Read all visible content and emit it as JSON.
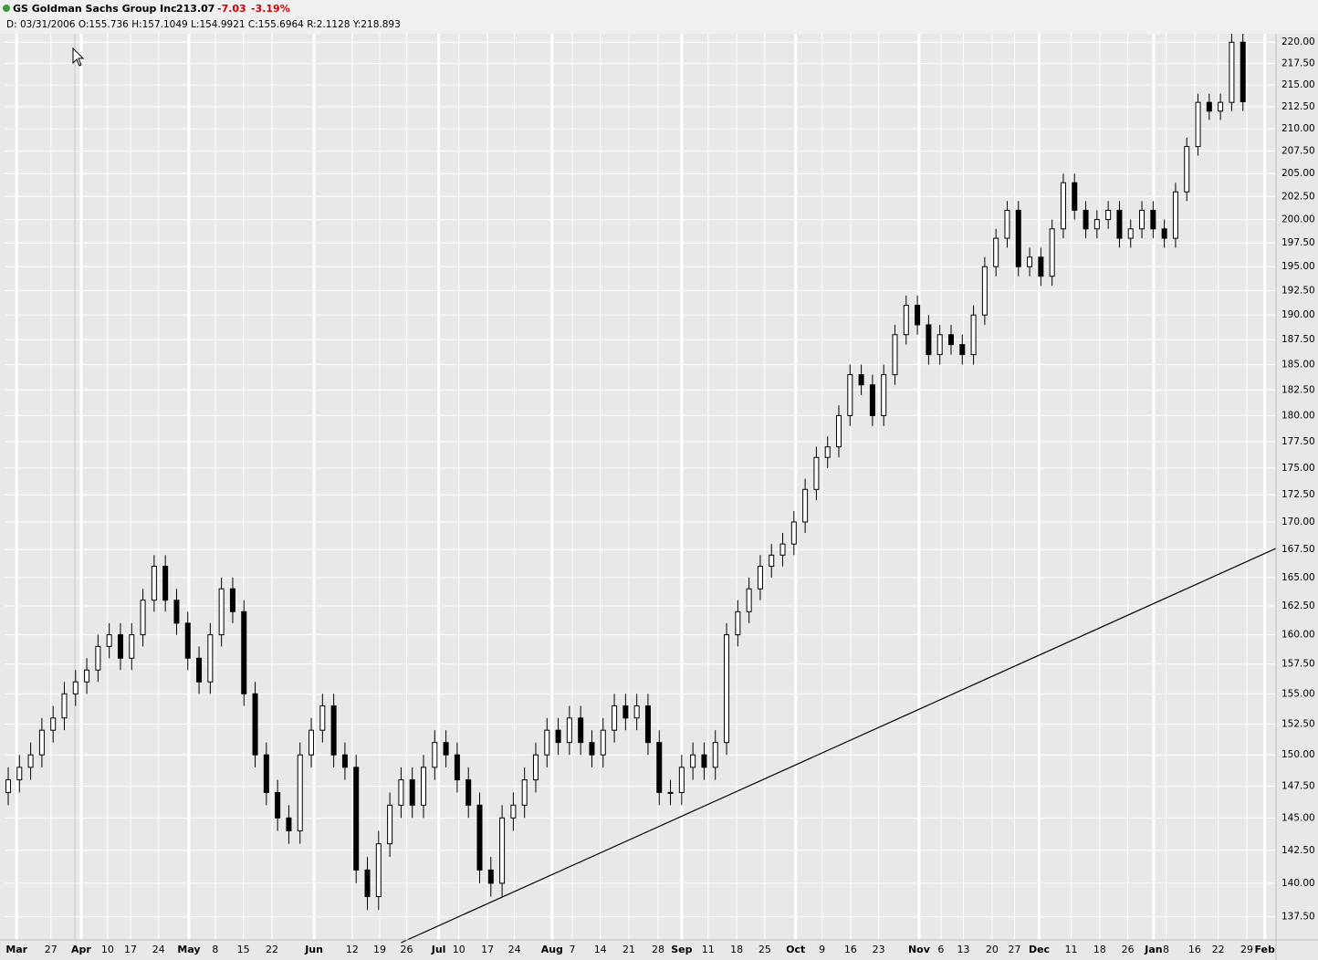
{
  "header": {
    "symbol": "GS Goldman Sachs Group Inc",
    "price": "213.07",
    "change": "-7.03",
    "change_pct": "-3.19%",
    "info": "D: 03/31/2006 O:155.736 H:157.1049 L:154.9921 C:155.6964 R:2.1128 Y:218.893"
  },
  "chart_data": {
    "type": "candlestick",
    "log_scale": true,
    "grid": true,
    "up_color": "#ffffff",
    "down_color": "#000000",
    "x": [
      0,
      2,
      4,
      6,
      8,
      10,
      12,
      14,
      16,
      18,
      20,
      22,
      24,
      26,
      28,
      30,
      32,
      34,
      36,
      38,
      40,
      42,
      44,
      46,
      48,
      50,
      52,
      54,
      56,
      58,
      60,
      62,
      64,
      66,
      68,
      70,
      72,
      74,
      76,
      78,
      80,
      82,
      84,
      86,
      88,
      90,
      92,
      94,
      96,
      98,
      100,
      102,
      104,
      106,
      108,
      110,
      112,
      114,
      116,
      118,
      120,
      122,
      124,
      126,
      128,
      130,
      132,
      134,
      136,
      138,
      140,
      142,
      144,
      146,
      148,
      150,
      152,
      154,
      156,
      158,
      160,
      162,
      164,
      166,
      168,
      170,
      172,
      174,
      176,
      178,
      180,
      182,
      184,
      186,
      188,
      190,
      192,
      194,
      196,
      198,
      200,
      202,
      204,
      206,
      208,
      210,
      212,
      214,
      216,
      218,
      220
    ],
    "open": [
      147,
      148,
      149,
      150,
      152,
      153,
      155,
      156,
      157,
      159,
      160,
      158,
      160,
      163,
      166,
      163,
      161,
      158,
      156,
      160,
      164,
      162,
      155,
      150,
      147,
      145,
      144,
      150,
      152,
      154,
      150,
      149,
      141,
      139,
      143,
      146,
      148,
      146,
      149,
      151,
      150,
      148,
      146,
      141,
      140,
      145,
      146,
      148,
      150,
      152,
      151,
      153,
      151,
      150,
      152,
      154,
      153,
      154,
      151,
      147,
      147,
      149,
      150,
      149,
      151,
      160,
      162,
      164,
      166,
      167,
      168,
      170,
      173,
      176,
      177,
      180,
      184,
      183,
      180,
      184,
      188,
      191,
      189,
      186,
      188,
      187,
      186,
      190,
      195,
      198,
      201,
      195,
      196,
      194,
      199,
      204,
      201,
      199,
      200,
      201,
      198,
      199,
      201,
      199,
      198,
      203,
      208,
      213,
      212,
      213,
      220
    ],
    "high": [
      149,
      150,
      151,
      153,
      154,
      156,
      157,
      158,
      160,
      161,
      161,
      161,
      164,
      167,
      167,
      164,
      162,
      159,
      161,
      165,
      165,
      163,
      156,
      151,
      148,
      146,
      151,
      153,
      155,
      155,
      151,
      150,
      142,
      144,
      147,
      149,
      149,
      150,
      152,
      152,
      151,
      149,
      147,
      142,
      146,
      147,
      149,
      151,
      153,
      153,
      154,
      154,
      152,
      153,
      155,
      155,
      155,
      155,
      152,
      148,
      150,
      151,
      151,
      152,
      161,
      163,
      165,
      167,
      168,
      169,
      171,
      174,
      177,
      178,
      181,
      185,
      185,
      184,
      185,
      189,
      192,
      192,
      190,
      189,
      189,
      188,
      191,
      196,
      199,
      202,
      202,
      197,
      197,
      200,
      205,
      205,
      202,
      201,
      202,
      202,
      200,
      202,
      202,
      200,
      204,
      209,
      214,
      214,
      214,
      221,
      221
    ],
    "low": [
      146,
      147,
      148,
      149,
      151,
      152,
      154,
      155,
      156,
      158,
      157,
      157,
      159,
      162,
      162,
      160,
      157,
      155,
      155,
      159,
      161,
      154,
      149,
      146,
      144,
      143,
      143,
      149,
      151,
      149,
      148,
      140,
      138,
      138,
      142,
      145,
      145,
      145,
      148,
      149,
      147,
      145,
      140,
      139,
      139,
      144,
      145,
      147,
      149,
      150,
      150,
      150,
      149,
      149,
      151,
      152,
      152,
      150,
      146,
      146,
      146,
      148,
      148,
      148,
      150,
      159,
      161,
      163,
      165,
      166,
      167,
      169,
      172,
      175,
      176,
      179,
      182,
      179,
      179,
      183,
      187,
      188,
      185,
      185,
      186,
      185,
      185,
      189,
      194,
      197,
      194,
      194,
      193,
      193,
      198,
      200,
      198,
      198,
      199,
      197,
      197,
      198,
      198,
      197,
      197,
      202,
      207,
      211,
      211,
      212,
      212
    ],
    "close": [
      148,
      149,
      150,
      152,
      153,
      155,
      156,
      157,
      159,
      160,
      158,
      160,
      163,
      166,
      163,
      161,
      158,
      156,
      160,
      164,
      162,
      155,
      150,
      147,
      145,
      144,
      150,
      152,
      154,
      150,
      149,
      141,
      139,
      143,
      146,
      148,
      146,
      149,
      151,
      150,
      148,
      146,
      141,
      140,
      145,
      146,
      148,
      150,
      152,
      151,
      153,
      151,
      150,
      152,
      154,
      153,
      154,
      151,
      147,
      147,
      149,
      150,
      149,
      151,
      160,
      162,
      164,
      166,
      167,
      168,
      170,
      173,
      176,
      177,
      180,
      184,
      183,
      180,
      184,
      188,
      191,
      189,
      186,
      188,
      187,
      186,
      190,
      195,
      198,
      201,
      195,
      196,
      194,
      199,
      204,
      201,
      199,
      200,
      201,
      198,
      199,
      201,
      199,
      198,
      203,
      208,
      213,
      212,
      213,
      220,
      213.07
    ],
    "trendline": {
      "x": [
        70,
        225.9
      ],
      "y": [
        135.6,
        167.6
      ],
      "color": "#000000"
    },
    "xlim": [
      -0.65,
      225.9
    ],
    "ylim": [
      135.8,
      221
    ],
    "xticks": [
      {
        "value": 1.5,
        "label": "Mar"
      },
      {
        "value": 7.6,
        "label": "27"
      },
      {
        "value": 13,
        "label": "Apr"
      },
      {
        "value": 17.7,
        "label": "10"
      },
      {
        "value": 21.8,
        "label": "17"
      },
      {
        "value": 26.8,
        "label": "24"
      },
      {
        "value": 32.2,
        "label": "May"
      },
      {
        "value": 36.9,
        "label": "8"
      },
      {
        "value": 41.9,
        "label": "15"
      },
      {
        "value": 47,
        "label": "22"
      },
      {
        "value": 54.5,
        "label": "Jun"
      },
      {
        "value": 61.3,
        "label": "12"
      },
      {
        "value": 66.2,
        "label": "19"
      },
      {
        "value": 71,
        "label": "26"
      },
      {
        "value": 76.7,
        "label": "Jul"
      },
      {
        "value": 80.3,
        "label": "10"
      },
      {
        "value": 85.4,
        "label": "17"
      },
      {
        "value": 90.2,
        "label": "24"
      },
      {
        "value": 96.9,
        "label": "Aug"
      },
      {
        "value": 100.5,
        "label": "7"
      },
      {
        "value": 105.5,
        "label": "14"
      },
      {
        "value": 110.6,
        "label": "21"
      },
      {
        "value": 115.8,
        "label": "28"
      },
      {
        "value": 120,
        "label": "Sep"
      },
      {
        "value": 124.7,
        "label": "11"
      },
      {
        "value": 129.8,
        "label": "18"
      },
      {
        "value": 134.8,
        "label": "25"
      },
      {
        "value": 140.3,
        "label": "Oct"
      },
      {
        "value": 145,
        "label": "9"
      },
      {
        "value": 150.1,
        "label": "16"
      },
      {
        "value": 155.1,
        "label": "23"
      },
      {
        "value": 162.3,
        "label": "Nov"
      },
      {
        "value": 166.2,
        "label": "6"
      },
      {
        "value": 170.2,
        "label": "13"
      },
      {
        "value": 175.3,
        "label": "20"
      },
      {
        "value": 179.3,
        "label": "27"
      },
      {
        "value": 183.7,
        "label": "Dec"
      },
      {
        "value": 189.4,
        "label": "11"
      },
      {
        "value": 194.5,
        "label": "18"
      },
      {
        "value": 199.5,
        "label": "26"
      },
      {
        "value": 204.1,
        "label": "Jan"
      },
      {
        "value": 206.3,
        "label": "8"
      },
      {
        "value": 211.4,
        "label": "16"
      },
      {
        "value": 215.6,
        "label": "22"
      },
      {
        "value": 220.7,
        "label": "29"
      },
      {
        "value": 223.9,
        "label": "Feb"
      }
    ],
    "yticks": [
      {
        "value": 137.5,
        "label": "137.50"
      },
      {
        "value": 140,
        "label": "140.00"
      },
      {
        "value": 142.5,
        "label": "142.50"
      },
      {
        "value": 145,
        "label": "145.00"
      },
      {
        "value": 147.5,
        "label": "147.50"
      },
      {
        "value": 150,
        "label": "150.00"
      },
      {
        "value": 152.5,
        "label": "152.50"
      },
      {
        "value": 155,
        "label": "155.00"
      },
      {
        "value": 157.5,
        "label": "157.50"
      },
      {
        "value": 160,
        "label": "160.00"
      },
      {
        "value": 162.5,
        "label": "162.50"
      },
      {
        "value": 165,
        "label": "165.00"
      },
      {
        "value": 167.5,
        "label": "167.50"
      },
      {
        "value": 170,
        "label": "170.00"
      },
      {
        "value": 172.5,
        "label": "172.50"
      },
      {
        "value": 175,
        "label": "175.00"
      },
      {
        "value": 177.5,
        "label": "177.50"
      },
      {
        "value": 180,
        "label": "180.00"
      },
      {
        "value": 182.5,
        "label": "182.50"
      },
      {
        "value": 185,
        "label": "185.00"
      },
      {
        "value": 187.5,
        "label": "187.50"
      },
      {
        "value": 190,
        "label": "190.00"
      },
      {
        "value": 192.5,
        "label": "192.50"
      },
      {
        "value": 195,
        "label": "195.00"
      },
      {
        "value": 197.5,
        "label": "197.50"
      },
      {
        "value": 200,
        "label": "200.00"
      },
      {
        "value": 202.5,
        "label": "202.50"
      },
      {
        "value": 205,
        "label": "205.00"
      },
      {
        "value": 207.5,
        "label": "207.50"
      },
      {
        "value": 210,
        "label": "210.00"
      },
      {
        "value": 212.5,
        "label": "212.50"
      },
      {
        "value": 215,
        "label": "215.00"
      },
      {
        "value": 217.5,
        "label": "217.50"
      },
      {
        "value": 220,
        "label": "220.00"
      }
    ]
  }
}
